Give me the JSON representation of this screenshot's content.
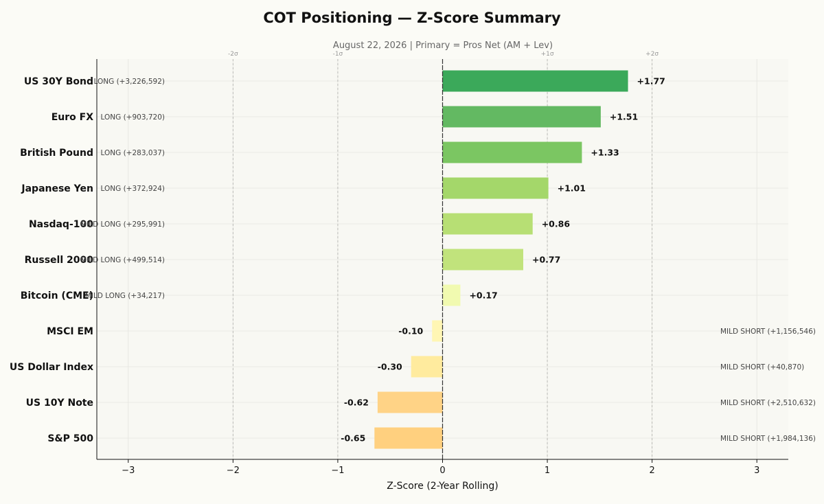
{
  "title": "COT Positioning — Z-Score Summary",
  "subtitle": "August 22, 2026 | Primary = Pros Net (AM + Lev)",
  "chart_data": {
    "type": "bar",
    "orientation": "horizontal",
    "xlabel": "Z-Score (2-Year Rolling)",
    "xlim": [
      -3.3,
      3.3
    ],
    "xticks": [
      -3,
      -2,
      -1,
      0,
      1,
      2,
      3
    ],
    "xtick_labels": [
      "−3",
      "−2",
      "−1",
      "0",
      "1",
      "2",
      "3"
    ],
    "sigma_lines": [
      {
        "x": -2,
        "label": "-2σ"
      },
      {
        "x": -1,
        "label": "-1σ"
      },
      {
        "x": 1,
        "label": "+1σ"
      },
      {
        "x": 2,
        "label": "+2σ"
      }
    ],
    "grid": true,
    "categories": [
      "US 30Y Bond",
      "Euro FX",
      "British Pound",
      "Japanese Yen",
      "Nasdaq-100",
      "Russell 2000",
      "Bitcoin (CME)",
      "MSCI EM",
      "US Dollar Index",
      "US 10Y Note",
      "S&P 500"
    ],
    "values": [
      1.77,
      1.51,
      1.33,
      1.01,
      0.86,
      0.77,
      0.17,
      -0.1,
      -0.3,
      -0.62,
      -0.65
    ],
    "value_labels": [
      "+1.77",
      "+1.51",
      "+1.33",
      "+1.01",
      "+0.86",
      "+0.77",
      "+0.17",
      "-0.10",
      "-0.30",
      "-0.62",
      "-0.65"
    ],
    "position_labels": [
      "LONG (+3,226,592)",
      "LONG (+903,720)",
      "LONG (+283,037)",
      "LONG (+372,924)",
      "MILD LONG (+295,991)",
      "MILD LONG (+499,514)",
      "MILD LONG (+34,217)",
      "MILD SHORT (+1,156,546)",
      "MILD SHORT (+40,870)",
      "MILD SHORT (+2,510,632)",
      "MILD SHORT (+1,984,136)"
    ],
    "colors": [
      "#3ba95a",
      "#63b962",
      "#7bc662",
      "#a4d76a",
      "#b7df74",
      "#c1e37c",
      "#f1fab0",
      "#fff6b4",
      "#ffeb9e",
      "#ffd386",
      "#ffd07f"
    ]
  }
}
